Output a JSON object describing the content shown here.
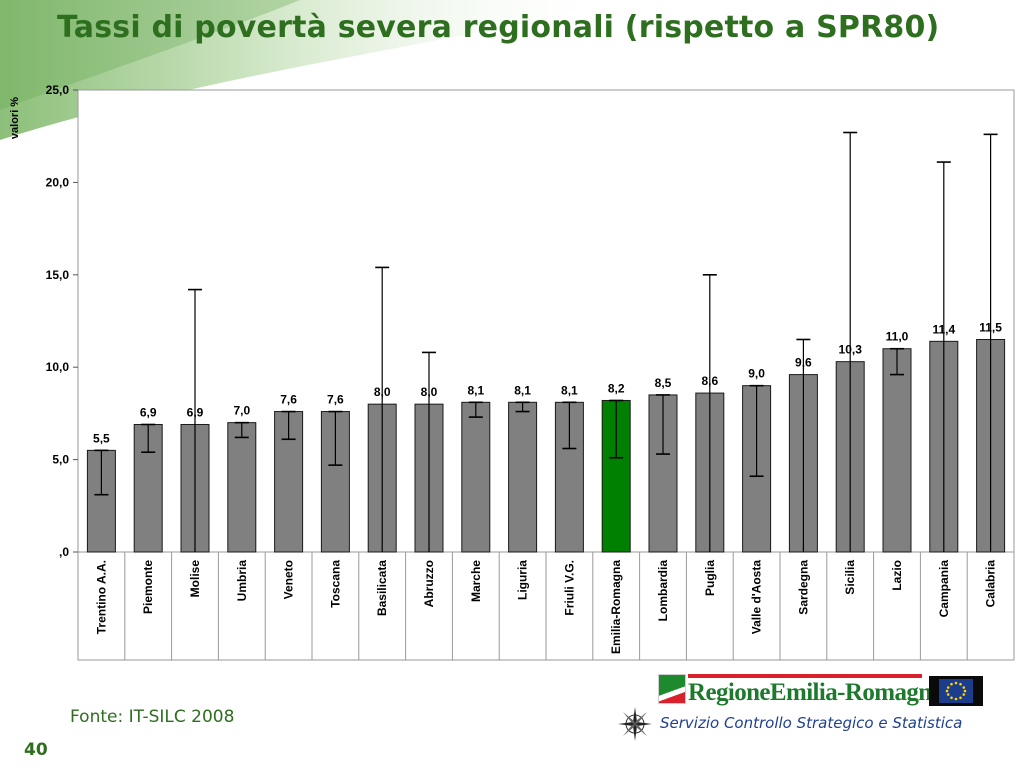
{
  "slide": {
    "title": "Tassi di povertà severa regionali (rispetto a SPR80)",
    "source": "Fonte: IT-SILC 2008",
    "page_number": "40"
  },
  "logos": {
    "region_name": "RegioneEmilia-Romagna",
    "service_name": "Servizio Controllo Strategico e Statistica"
  },
  "icons": {
    "compass": "compass-rose-icon",
    "eu_flag": "eu-flag-icon",
    "region_flag": "region-flag-icon"
  },
  "colors": {
    "title": "#2d6e1f",
    "bar": "#808080",
    "highlight_bar": "#008000",
    "service_text": "#1f3f93"
  },
  "chart_data": {
    "type": "bar",
    "ylabel": "valori %",
    "ylim": [
      0,
      25
    ],
    "yticks": [
      0,
      5,
      10,
      15,
      20,
      25
    ],
    "ytick_labels": [
      ",0",
      "5,0",
      "10,0",
      "15,0",
      "20,0",
      "25,0"
    ],
    "grid": false,
    "legend": false,
    "highlight": "Emilia-Romagna",
    "categories": [
      "Trentino A.A.",
      "Piemonte",
      "Molise",
      "Umbria",
      "Veneto",
      "Toscana",
      "Basilicata",
      "Abruzzo",
      "Marche",
      "Liguria",
      "Friuli V.G.",
      "Emilia-Romagna",
      "Lombardia",
      "Puglia",
      "Valle d'Aosta",
      "Sardegna",
      "Sicilia",
      "Lazio",
      "Campania",
      "Calabria"
    ],
    "values": [
      5.5,
      6.9,
      6.9,
      7.0,
      7.6,
      7.6,
      8.0,
      8.0,
      8.1,
      8.1,
      8.1,
      8.2,
      8.5,
      8.6,
      9.0,
      9.6,
      10.3,
      11.0,
      11.4,
      11.5
    ],
    "value_labels": [
      "5,5",
      "6,9",
      "6,9",
      "7,0",
      "7,6",
      "7,6",
      "8,0",
      "8,0",
      "8,1",
      "8,1",
      "8,1",
      "8,2",
      "8,5",
      "8,6",
      "9,0",
      "9,6",
      "10,3",
      "11,0",
      "11,4",
      "11,5"
    ],
    "ci_lower": [
      3.1,
      5.4,
      0,
      6.2,
      6.1,
      4.7,
      0,
      0,
      7.3,
      7.6,
      5.6,
      5.1,
      5.3,
      0,
      4.1,
      0,
      0,
      9.6,
      0,
      0
    ],
    "ci_upper": [
      5.5,
      6.9,
      14.2,
      7.0,
      7.6,
      7.6,
      15.4,
      10.8,
      8.1,
      8.1,
      8.1,
      8.2,
      8.5,
      15.0,
      9.0,
      11.5,
      22.7,
      11.0,
      21.1,
      22.6
    ]
  }
}
